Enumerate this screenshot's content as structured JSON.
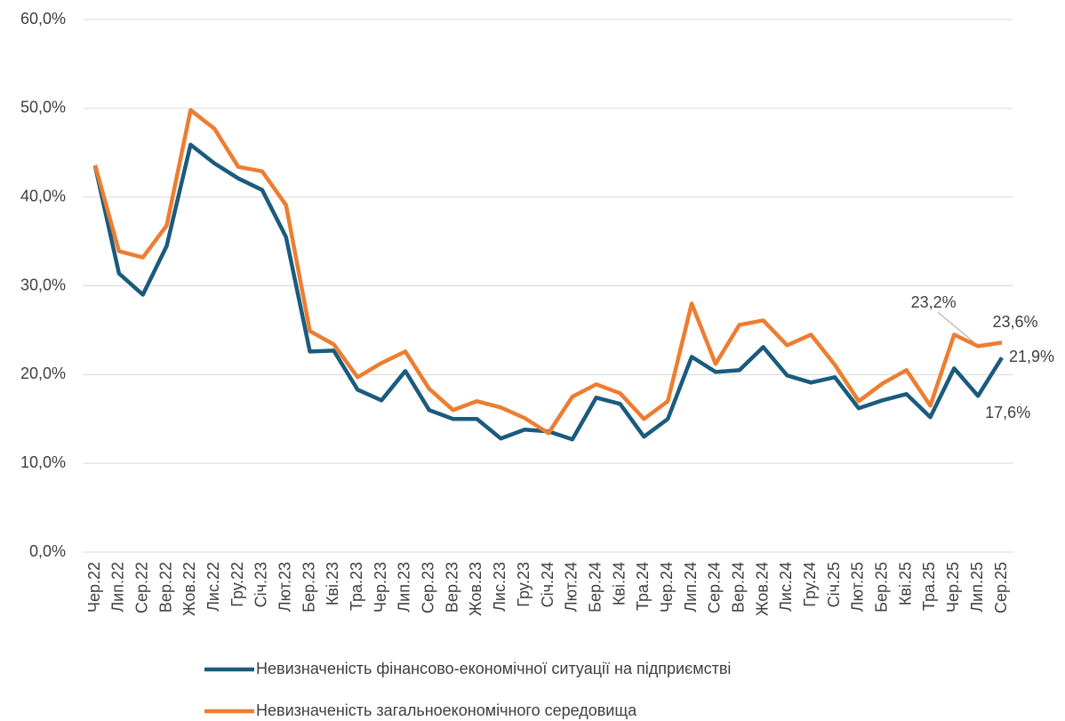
{
  "chart_data": {
    "type": "line",
    "categories": [
      "Чер.22",
      "Лип.22",
      "Сер.22",
      "Вер.22",
      "Жов.22",
      "Лис.22",
      "Гру.22",
      "Січ.23",
      "Лют.23",
      "Бер.23",
      "Кві.23",
      "Тра.23",
      "Чер.23",
      "Лип.23",
      "Сер.23",
      "Вер.23",
      "Жов.23",
      "Лис.23",
      "Гру.23",
      "Січ.24",
      "Лют.24",
      "Бер.24",
      "Кві.24",
      "Тра.24",
      "Чер.24",
      "Лип.24",
      "Сер.24",
      "Вер.24",
      "Жов.24",
      "Лис.24",
      "Гру.24",
      "Січ.25",
      "Лют.25",
      "Бер.25",
      "Кві.25",
      "Тра.25",
      "Чер.25",
      "Лип.25",
      "Сер.25"
    ],
    "series": [
      {
        "name": "Невизначеність фінансово-економічної ситуації на підприємстві",
        "color": "#1a5b7e",
        "values": [
          43.5,
          31.4,
          29.0,
          34.5,
          45.9,
          43.8,
          42.1,
          40.8,
          35.5,
          22.6,
          22.7,
          18.3,
          17.1,
          20.4,
          16.0,
          15.0,
          15.0,
          12.8,
          13.8,
          13.6,
          12.7,
          17.4,
          16.7,
          13.0,
          15.0,
          22.0,
          20.3,
          20.5,
          23.1,
          19.9,
          19.1,
          19.7,
          16.2,
          17.1,
          17.8,
          15.2,
          20.7,
          17.6,
          21.9
        ],
        "value_labels": [
          null,
          null,
          null,
          null,
          null,
          null,
          null,
          null,
          null,
          null,
          null,
          null,
          null,
          null,
          null,
          null,
          null,
          null,
          null,
          null,
          null,
          null,
          null,
          null,
          null,
          null,
          null,
          null,
          null,
          null,
          null,
          null,
          null,
          null,
          null,
          null,
          null,
          "17,6%",
          "21,9%"
        ]
      },
      {
        "name": "Невизначеність загальноекономічного середовища",
        "color": "#ed7d31",
        "values": [
          43.6,
          33.9,
          33.2,
          36.8,
          49.8,
          47.7,
          43.4,
          42.9,
          39.1,
          24.9,
          23.4,
          19.7,
          21.3,
          22.6,
          18.4,
          16.0,
          17.0,
          16.3,
          15.1,
          13.4,
          17.5,
          18.9,
          17.9,
          15.0,
          17.0,
          28.0,
          21.2,
          25.6,
          26.1,
          23.3,
          24.5,
          21.1,
          17.0,
          19.0,
          20.5,
          16.5,
          24.5,
          23.2,
          23.6
        ],
        "value_labels": [
          null,
          null,
          null,
          null,
          null,
          null,
          null,
          null,
          null,
          null,
          null,
          null,
          null,
          null,
          null,
          null,
          null,
          null,
          null,
          null,
          null,
          null,
          null,
          null,
          null,
          null,
          null,
          null,
          null,
          null,
          null,
          null,
          null,
          null,
          null,
          null,
          null,
          "23,2%",
          "23,6%"
        ]
      }
    ],
    "ylim": [
      0,
      60
    ],
    "yticks": [
      {
        "value": 0,
        "label": "0,0%"
      },
      {
        "value": 10,
        "label": "10,0%"
      },
      {
        "value": 20,
        "label": "20,0%"
      },
      {
        "value": 30,
        "label": "30,0%"
      },
      {
        "value": 40,
        "label": "40,0%"
      },
      {
        "value": 50,
        "label": "50,0%"
      },
      {
        "value": 60,
        "label": "60,0%"
      }
    ],
    "grid": true,
    "legend": "bottom"
  }
}
